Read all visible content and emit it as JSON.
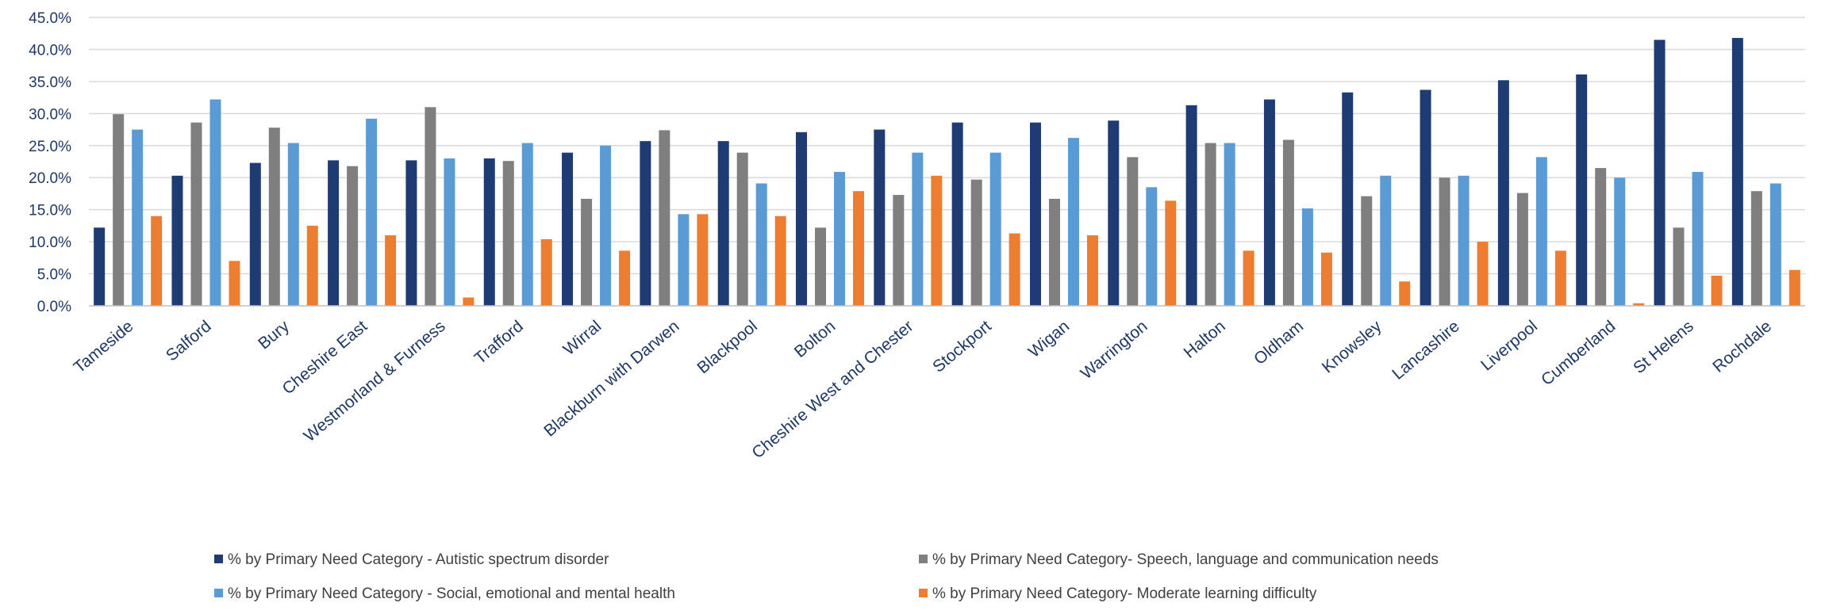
{
  "chart_data": {
    "type": "bar",
    "title": "",
    "xlabel": "",
    "ylabel": "",
    "ylim": [
      0,
      45
    ],
    "y_tick_labels": [
      "0.0%",
      "5.0%",
      "10.0%",
      "15.0%",
      "20.0%",
      "25.0%",
      "30.0%",
      "35.0%",
      "40.0%",
      "45.0%"
    ],
    "grid": "horizontal",
    "legend_position": "bottom",
    "categories": [
      "Tameside",
      "Salford",
      "Bury",
      "Cheshire East",
      "Westmorland & Furness",
      "Trafford",
      "Wirral",
      "Blackburn with Darwen",
      "Blackpool",
      "Bolton",
      "Cheshire West and Chester",
      "Stockport",
      "Wigan",
      "Warrington",
      "Halton",
      "Oldham",
      "Knowsley",
      "Lancashire",
      "Liverpool",
      "Cumberland",
      "St Helens",
      "Rochdale"
    ],
    "series": [
      {
        "name": "% by Primary Need Category - Autistic spectrum disorder",
        "color": "#1f3b73",
        "values": [
          12.2,
          20.3,
          22.3,
          22.7,
          22.7,
          23.0,
          23.9,
          25.7,
          25.7,
          27.1,
          27.5,
          28.6,
          28.6,
          28.9,
          31.3,
          32.2,
          33.3,
          33.7,
          35.2,
          36.1,
          41.5,
          41.8
        ]
      },
      {
        "name": "% by Primary Need Category- Speech, language and communication needs",
        "color": "#7f7f7f",
        "values": [
          29.9,
          28.6,
          27.8,
          21.8,
          31.0,
          22.6,
          16.7,
          27.4,
          23.9,
          12.2,
          17.3,
          19.7,
          16.7,
          23.2,
          25.4,
          25.9,
          17.1,
          20.0,
          17.6,
          21.5,
          12.2,
          17.9
        ]
      },
      {
        "name": "% by Primary Need Category - Social, emotional and mental health",
        "color": "#5b9bd5",
        "values": [
          27.5,
          32.2,
          25.4,
          29.2,
          23.0,
          25.4,
          25.0,
          14.3,
          19.1,
          20.9,
          23.9,
          23.9,
          26.2,
          18.5,
          25.4,
          15.2,
          20.3,
          20.3,
          23.2,
          20.0,
          20.9,
          19.1
        ]
      },
      {
        "name": "% by Primary Need Category- Moderate learning difficulty",
        "color": "#ed7d31",
        "values": [
          14.0,
          7.0,
          12.5,
          11.0,
          1.3,
          10.4,
          8.6,
          14.3,
          14.0,
          17.9,
          20.3,
          11.3,
          11.0,
          16.4,
          8.6,
          8.3,
          3.8,
          10.0,
          8.6,
          0.4,
          4.7,
          5.6
        ]
      }
    ]
  }
}
